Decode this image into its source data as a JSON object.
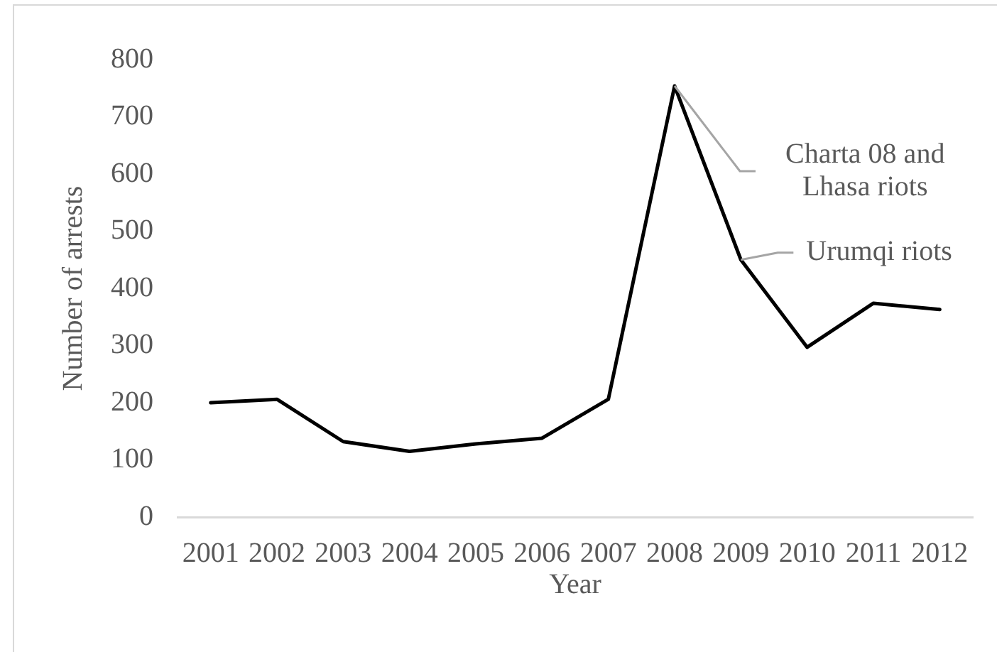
{
  "chart_data": {
    "type": "line",
    "xlabel": "Year",
    "ylabel": "Number of arrests",
    "categories": [
      "2001",
      "2002",
      "2003",
      "2004",
      "2005",
      "2006",
      "2007",
      "2008",
      "2009",
      "2010",
      "2011",
      "2012"
    ],
    "series": [
      {
        "color": "#000000",
        "values": [
          200,
          206,
          132,
          115,
          128,
          138,
          206,
          754,
          450,
          297,
          374,
          363
        ]
      }
    ],
    "ylim": [
      0,
      800
    ],
    "yticks": [
      0,
      100,
      200,
      300,
      400,
      500,
      600,
      700,
      800
    ],
    "grid": false,
    "legend": false,
    "marker": "none",
    "line_style": "solid",
    "annotations": [
      {
        "text": "Charta 08 and Lhasa riots",
        "x": "2008",
        "y": 754
      },
      {
        "text": "Urumqi riots",
        "x": "2009",
        "y": 450
      }
    ]
  }
}
